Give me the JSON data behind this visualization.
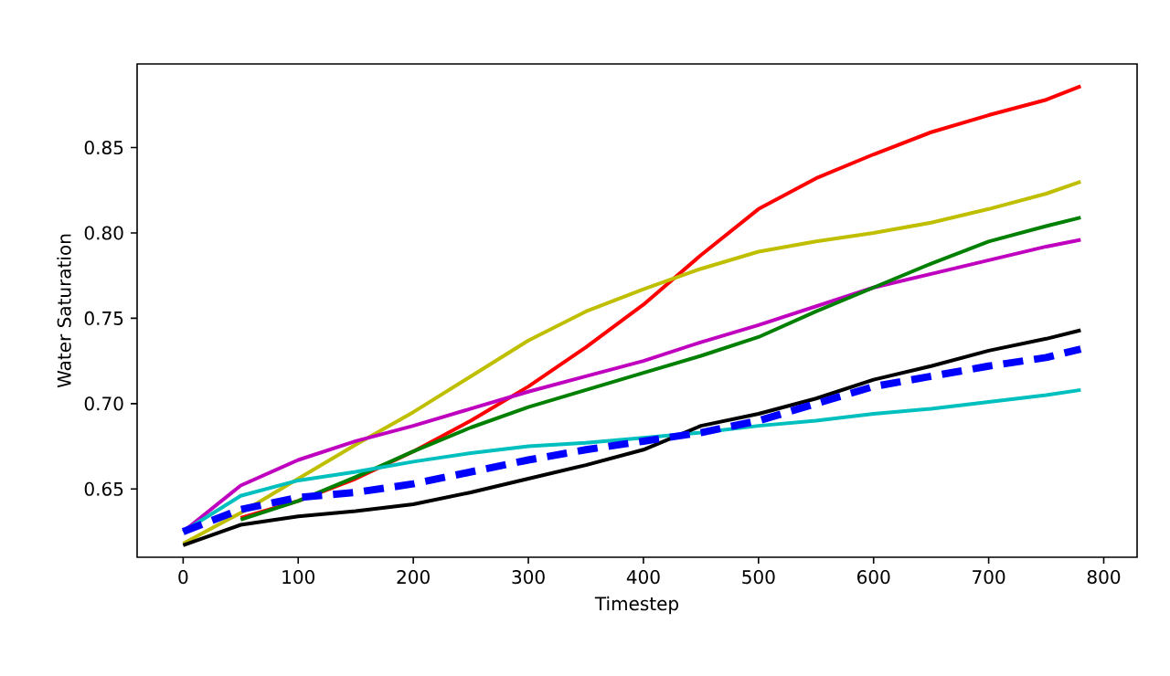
{
  "chart_data": {
    "type": "line",
    "xlabel": "Timestep",
    "ylabel": "Water Saturation",
    "x": [
      0,
      50,
      100,
      150,
      200,
      250,
      300,
      350,
      400,
      450,
      500,
      550,
      600,
      650,
      700,
      750,
      780
    ],
    "xlim": [
      -40,
      829
    ],
    "ylim": [
      0.61,
      0.899
    ],
    "xticks": [
      0,
      100,
      200,
      300,
      400,
      500,
      600,
      700,
      800
    ],
    "yticks": [
      0.65,
      {
        "value": 0.7,
        "label": "0.70"
      },
      0.75,
      {
        "value": 0.8,
        "label": "0.80"
      },
      0.85
    ],
    "grid": false,
    "legend": false,
    "marker": "none",
    "series": [
      {
        "color": "#ff0000",
        "line_style": "solid",
        "values": [
          null,
          0.633,
          0.643,
          0.656,
          0.672,
          0.69,
          0.71,
          0.733,
          0.758,
          0.787,
          0.814,
          0.832,
          0.846,
          0.859,
          0.869,
          0.878,
          0.886
        ]
      },
      {
        "color": "#bfbf00",
        "line_style": "solid",
        "values": [
          0.618,
          0.636,
          0.656,
          0.676,
          0.695,
          0.716,
          0.737,
          0.754,
          0.767,
          0.779,
          0.789,
          0.795,
          0.8,
          0.806,
          0.814,
          0.823,
          0.83
        ]
      },
      {
        "color": "#bf00bf",
        "line_style": "solid",
        "values": [
          0.625,
          0.652,
          0.667,
          0.678,
          0.687,
          0.697,
          0.707,
          0.716,
          0.725,
          0.736,
          0.746,
          0.757,
          0.768,
          0.776,
          0.784,
          0.792,
          0.796
        ]
      },
      {
        "color": "#008000",
        "line_style": "solid",
        "values": [
          null,
          0.632,
          0.643,
          0.657,
          0.672,
          0.686,
          0.698,
          0.708,
          0.718,
          0.728,
          0.739,
          0.754,
          0.768,
          0.782,
          0.795,
          0.804,
          0.809
        ]
      },
      {
        "color": "#00bfbf",
        "line_style": "solid",
        "values": [
          0.625,
          0.646,
          0.655,
          0.66,
          0.666,
          0.671,
          0.675,
          0.677,
          0.68,
          0.683,
          0.687,
          0.69,
          0.694,
          0.697,
          0.701,
          0.705,
          0.708
        ]
      },
      {
        "color": "#000000",
        "line_style": "solid",
        "values": [
          0.617,
          0.629,
          0.634,
          0.637,
          0.641,
          0.648,
          0.656,
          0.664,
          0.673,
          0.687,
          0.694,
          0.703,
          0.714,
          0.722,
          0.731,
          0.738,
          0.743
        ]
      },
      {
        "color": "#0000ff",
        "line_style": "dashed",
        "values": [
          0.625,
          0.638,
          0.645,
          0.648,
          0.653,
          0.66,
          0.667,
          0.673,
          0.678,
          0.683,
          0.69,
          0.7,
          0.71,
          0.716,
          0.722,
          0.727,
          0.732
        ]
      }
    ]
  }
}
